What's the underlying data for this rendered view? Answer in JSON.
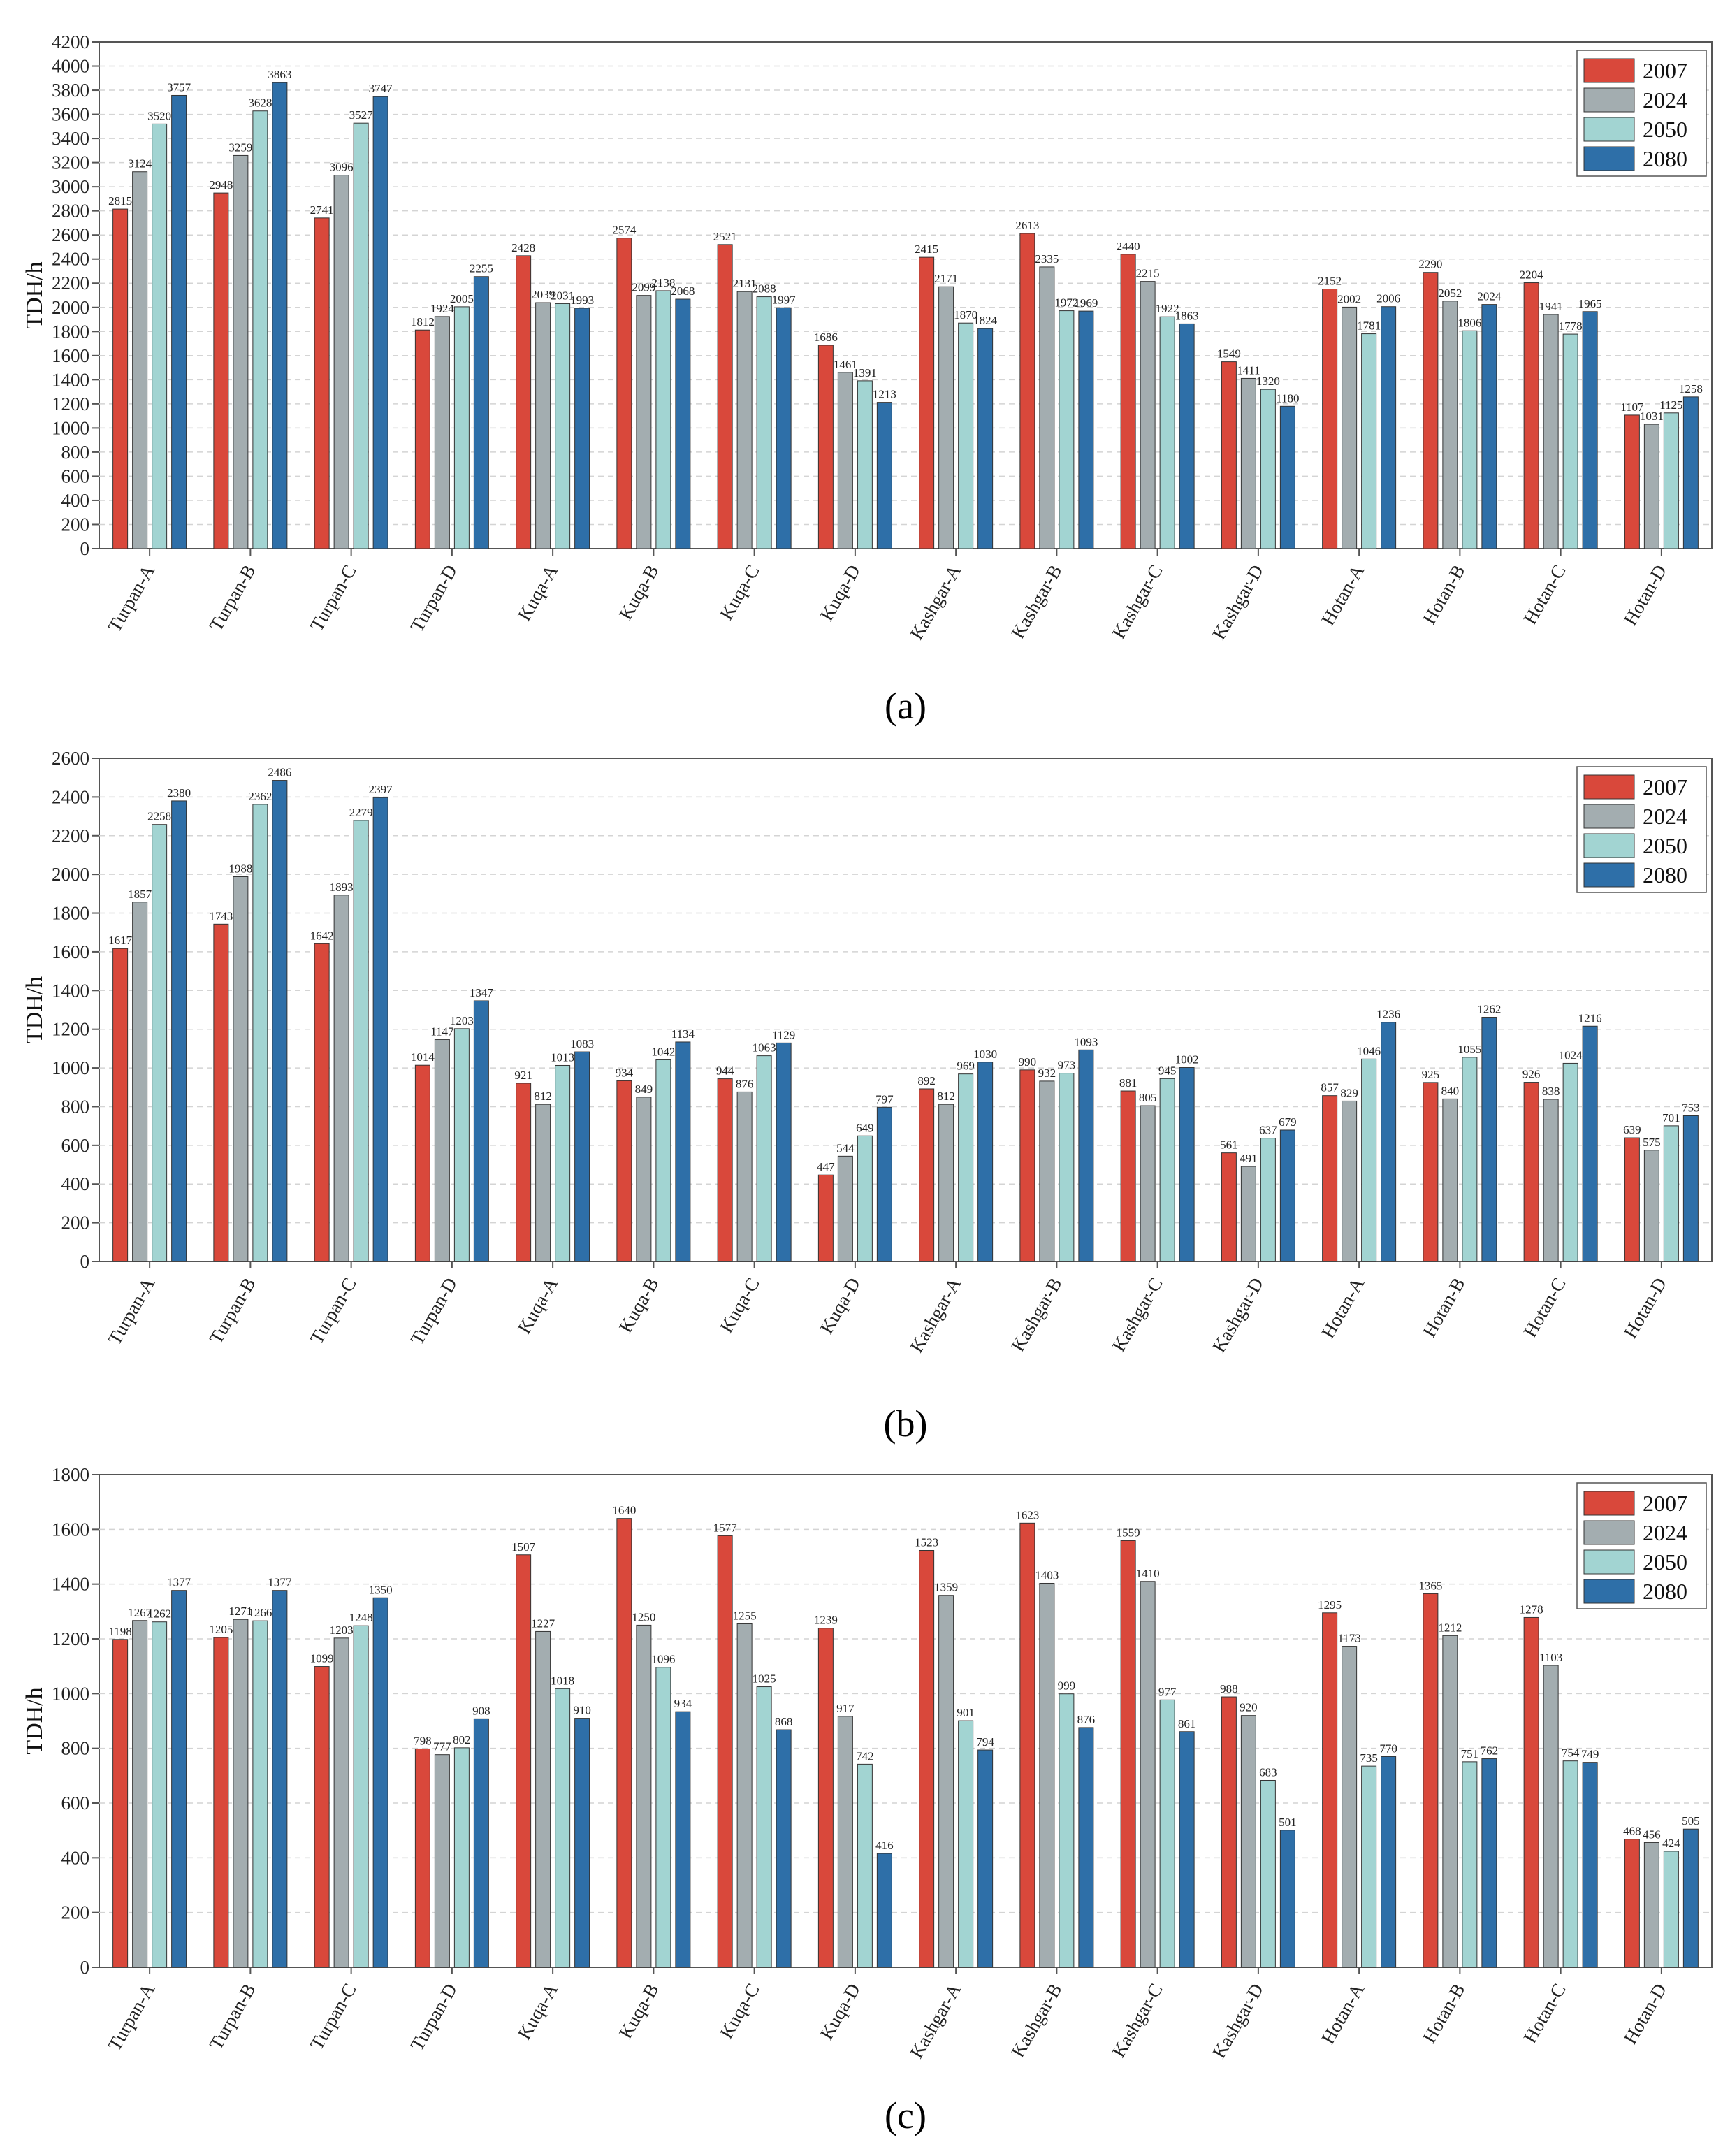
{
  "colors": {
    "2007": "#d9483b",
    "2024": "#a3adb0",
    "2050": "#a2d4d2",
    "2080": "#2e6fa8"
  },
  "chart_data": [
    {
      "panel": "(a)",
      "type": "bar",
      "ylabel": "TDH/h",
      "ylim": [
        0,
        4200
      ],
      "ytick_step": 200,
      "legend_position": "top-right",
      "categories": [
        "Turpan-A",
        "Turpan-B",
        "Turpan-C",
        "Turpan-D",
        "Kuqa-A",
        "Kuqa-B",
        "Kuqa-C",
        "Kuqa-D",
        "Kashgar-A",
        "Kashgar-B",
        "Kashgar-C",
        "Kashgar-D",
        "Hotan-A",
        "Hotan-B",
        "Hotan-C",
        "Hotan-D"
      ],
      "series": [
        {
          "name": "2007",
          "values": [
            2815,
            2948,
            2741,
            1812,
            2428,
            2574,
            2521,
            1686,
            2415,
            2613,
            2440,
            1549,
            2152,
            2290,
            2204,
            1107
          ]
        },
        {
          "name": "2024",
          "values": [
            3124,
            3259,
            3096,
            1924,
            2039,
            2099,
            2131,
            1461,
            2171,
            2335,
            2215,
            1411,
            2002,
            2052,
            1941,
            1031
          ]
        },
        {
          "name": "2050",
          "values": [
            3520,
            3628,
            3527,
            2005,
            2031,
            2138,
            2088,
            1391,
            1870,
            1972,
            1922,
            1320,
            1781,
            1806,
            1778,
            1125
          ]
        },
        {
          "name": "2080",
          "values": [
            3757,
            3863,
            3747,
            2255,
            1993,
            2068,
            1997,
            1213,
            1824,
            1969,
            1863,
            1180,
            2006,
            2024,
            1965,
            1258
          ]
        }
      ]
    },
    {
      "panel": "(b)",
      "type": "bar",
      "ylabel": "TDH/h",
      "ylim": [
        0,
        2600
      ],
      "ytick_step": 200,
      "legend_position": "top-right",
      "categories": [
        "Turpan-A",
        "Turpan-B",
        "Turpan-C",
        "Turpan-D",
        "Kuqa-A",
        "Kuqa-B",
        "Kuqa-C",
        "Kuqa-D",
        "Kashgar-A",
        "Kashgar-B",
        "Kashgar-C",
        "Kashgar-D",
        "Hotan-A",
        "Hotan-B",
        "Hotan-C",
        "Hotan-D"
      ],
      "series": [
        {
          "name": "2007",
          "values": [
            1617,
            1743,
            1642,
            1014,
            921,
            934,
            944,
            447,
            892,
            990,
            881,
            561,
            857,
            925,
            926,
            639
          ]
        },
        {
          "name": "2024",
          "values": [
            1857,
            1988,
            1893,
            1147,
            812,
            849,
            876,
            544,
            812,
            932,
            805,
            491,
            829,
            840,
            838,
            575
          ]
        },
        {
          "name": "2050",
          "values": [
            2258,
            2362,
            2279,
            1203,
            1013,
            1042,
            1063,
            649,
            969,
            973,
            945,
            637,
            1046,
            1055,
            1024,
            701
          ]
        },
        {
          "name": "2080",
          "values": [
            2380,
            2486,
            2397,
            1347,
            1083,
            1134,
            1129,
            797,
            1030,
            1093,
            1002,
            679,
            1236,
            1262,
            1216,
            753
          ]
        }
      ]
    },
    {
      "panel": "(c)",
      "type": "bar",
      "ylabel": "TDH/h",
      "ylim": [
        0,
        1800
      ],
      "ytick_step": 200,
      "legend_position": "top-right",
      "categories": [
        "Turpan-A",
        "Turpan-B",
        "Turpan-C",
        "Turpan-D",
        "Kuqa-A",
        "Kuqa-B",
        "Kuqa-C",
        "Kuqa-D",
        "Kashgar-A",
        "Kashgar-B",
        "Kashgar-C",
        "Kashgar-D",
        "Hotan-A",
        "Hotan-B",
        "Hotan-C",
        "Hotan-D"
      ],
      "series": [
        {
          "name": "2007",
          "values": [
            1198,
            1205,
            1099,
            798,
            1507,
            1640,
            1577,
            1239,
            1523,
            1623,
            1559,
            988,
            1295,
            1365,
            1278,
            468
          ]
        },
        {
          "name": "2024",
          "values": [
            1267,
            1271,
            1203,
            777,
            1227,
            1250,
            1255,
            917,
            1359,
            1403,
            1410,
            920,
            1173,
            1212,
            1103,
            456
          ]
        },
        {
          "name": "2050",
          "values": [
            1262,
            1266,
            1248,
            802,
            1018,
            1096,
            1025,
            742,
            901,
            999,
            977,
            683,
            735,
            751,
            754,
            424
          ]
        },
        {
          "name": "2080",
          "values": [
            1377,
            1377,
            1350,
            908,
            910,
            934,
            868,
            416,
            794,
            876,
            861,
            501,
            770,
            762,
            749,
            505
          ]
        }
      ]
    }
  ]
}
